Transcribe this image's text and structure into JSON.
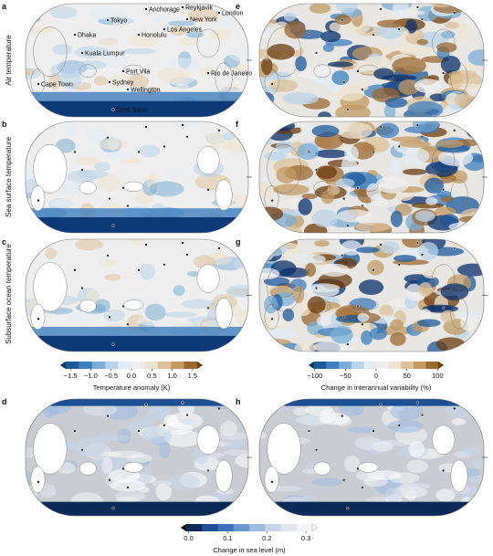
{
  "panels": [
    {
      "letter": "a"
    },
    {
      "letter": "e"
    },
    {
      "letter": "b"
    },
    {
      "letter": "f"
    },
    {
      "letter": "c"
    },
    {
      "letter": "g"
    },
    {
      "letter": "d"
    },
    {
      "letter": "h"
    }
  ],
  "row_labels": [
    "Air temperature",
    "Sea surface temperature",
    "Subsurface ocean temperature"
  ],
  "cities": [
    "Anchorage",
    "Reykjavik",
    "London",
    "New York",
    "Tokyo",
    "Los Angeles",
    "Honolulu",
    "Dhaka",
    "Kuala Lumpur",
    "Port Vila",
    "Rio de Janeiro",
    "Sydney",
    "Wellington",
    "Cape Town",
    "Scott Base"
  ],
  "colorbars": [
    {
      "label": "Temperature anomaly (K)",
      "lim": [
        -1.75,
        1.75
      ],
      "ticks": [
        {
          "value": -1.5,
          "label": "−1.5"
        },
        {
          "value": -1,
          "label": "−1.0"
        },
        {
          "value": -0.5,
          "label": "−0.5"
        },
        {
          "value": 0,
          "label": "0.0"
        },
        0.5,
        {
          "value": 1,
          "label": "1.0"
        },
        1.5
      ],
      "colors": [
        "#08306b",
        "#1c5a9c",
        "#3f7fbf",
        "#7aaed6",
        "#b9d4ea",
        "#e2ecf4",
        "#eeeeee",
        "#eee3cf",
        "#dcc29a",
        "#c29a62",
        "#9c6a30",
        "#6e3c0e"
      ]
    },
    {
      "label": "Change in interannual variability (%)",
      "lim": [
        -110,
        110
      ],
      "ticks": [
        {
          "value": -100,
          "label": "−100"
        },
        {
          "value": -50,
          "label": "−50"
        },
        0,
        50,
        100
      ],
      "colors": [
        "#08306b",
        "#1c5a9c",
        "#3f7fbf",
        "#7aaed6",
        "#b9d4ea",
        "#e2ecf4",
        "#eeeeee",
        "#eee3cf",
        "#dcc29a",
        "#c29a62",
        "#9c6a30",
        "#6e3c0e"
      ]
    },
    {
      "label": "Change in sea level (m)",
      "lim": [
        -0.02,
        0.33
      ],
      "ticks": [
        {
          "value": 0,
          "label": "0.0"
        },
        0.1,
        0.2,
        0.3
      ],
      "colors": [
        "#000000",
        "#0b2a5a",
        "#1d4f95",
        "#3a73bd",
        "#6a98d0",
        "#9bbbe0",
        "#c5d5ea",
        "#e2e6ee",
        "#f4f4f4",
        "#ffffff"
      ]
    }
  ]
}
